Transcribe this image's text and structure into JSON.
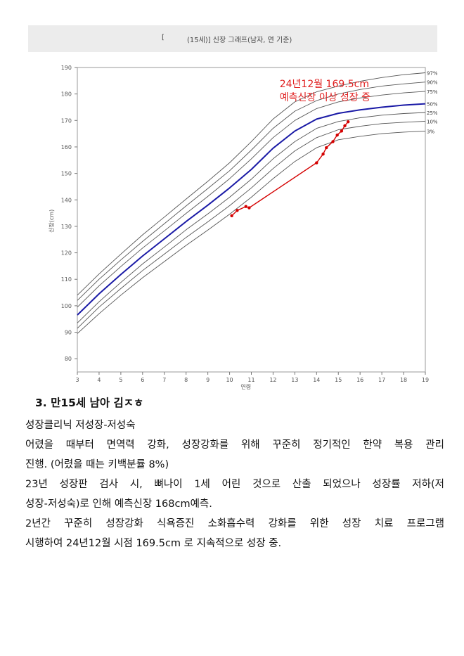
{
  "figure": {
    "header": {
      "bracket": "[",
      "title": "(15세)] 신장 그래프(남자, 연 기준)"
    },
    "chart_data": {
      "type": "line",
      "ylabel": "신장(cm)",
      "xlabel": "연령",
      "xlim": [
        3,
        19
      ],
      "ylim": [
        75,
        190
      ],
      "x_ticks": [
        3,
        4,
        5,
        6,
        7,
        8,
        9,
        10,
        11,
        12,
        13,
        14,
        15,
        16,
        17,
        18,
        19
      ],
      "y_ticks": [
        80,
        90,
        100,
        110,
        120,
        130,
        140,
        150,
        160,
        170,
        180,
        190
      ],
      "grid": false,
      "percentile_x": [
        3,
        4,
        5,
        6,
        7,
        8,
        9,
        10,
        11,
        12,
        13,
        14,
        15,
        16,
        17,
        18,
        19
      ],
      "percentile_series": [
        {
          "name": "97%",
          "values": [
            104.0,
            112.0,
            119.5,
            126.8,
            133.5,
            140.3,
            147.0,
            154.0,
            162.0,
            170.5,
            177.0,
            180.8,
            183.0,
            184.8,
            186.2,
            187.3,
            188.0
          ]
        },
        {
          "name": "90%",
          "values": [
            102.0,
            110.0,
            117.3,
            124.3,
            131.0,
            137.7,
            144.3,
            151.0,
            158.8,
            167.0,
            173.5,
            177.5,
            180.0,
            181.7,
            183.0,
            183.8,
            184.5
          ]
        },
        {
          "name": "75%",
          "values": [
            99.5,
            107.5,
            114.8,
            121.8,
            128.3,
            134.9,
            141.3,
            148.0,
            155.5,
            163.5,
            170.0,
            174.5,
            177.0,
            178.5,
            179.6,
            180.4,
            181.0
          ]
        },
        {
          "name": "50%",
          "values": [
            96.5,
            104.5,
            111.8,
            118.8,
            125.3,
            131.8,
            138.0,
            144.5,
            151.5,
            159.5,
            166.0,
            170.5,
            172.7,
            174.0,
            175.0,
            175.8,
            176.3
          ]
        },
        {
          "name": "25%",
          "values": [
            93.5,
            101.5,
            108.8,
            115.8,
            122.2,
            128.7,
            134.7,
            141.0,
            147.8,
            155.5,
            162.0,
            167.0,
            169.6,
            171.0,
            172.0,
            172.6,
            173.0
          ]
        },
        {
          "name": "10%",
          "values": [
            91.5,
            99.5,
            106.5,
            113.3,
            119.5,
            125.8,
            131.7,
            137.8,
            144.5,
            151.8,
            158.5,
            163.5,
            166.5,
            167.8,
            168.8,
            169.3,
            169.7
          ]
        },
        {
          "name": "3%",
          "values": [
            89.5,
            97.0,
            104.0,
            110.6,
            116.7,
            122.8,
            128.6,
            134.6,
            141.0,
            148.0,
            154.5,
            159.7,
            162.7,
            164.0,
            165.0,
            165.6,
            166.0
          ]
        }
      ],
      "highlight_series": "50%",
      "measurements": {
        "x": [
          10.1,
          10.35,
          10.75,
          10.9,
          14.0,
          14.3,
          14.45,
          14.75,
          14.95,
          15.15,
          15.3,
          15.45
        ],
        "y": [
          134.0,
          136.0,
          137.5,
          137.0,
          154.0,
          157.3,
          159.7,
          162.0,
          164.5,
          166.0,
          168.0,
          169.5
        ]
      },
      "annotation": {
        "line1": "24년12월 169.5cm",
        "line2": "예측신장 이상 성장 중",
        "x": 12.3,
        "y1": 182.5,
        "y2": 177.5
      },
      "colors": {
        "percentile": "#555555",
        "median": "#1a1aa6",
        "measure": "#d40000",
        "annotation": "#e02020"
      }
    }
  },
  "document": {
    "heading": "3. 만15세 남아 김ㅈㅎ",
    "lines": [
      "성장클리닉 저성장-저성숙",
      "어렸을 때부터 면역력 강화, 성장강화를 위해 꾸준히 정기적인 한약 복용 관리",
      "진행. (어렸을 때는 키백분률 8%)",
      "23년 성장판 검사 시, 뼈나이 1세 어린 것으로 산출 되었으나 성장률 저하(저",
      "성장-저성숙)로 인해 예측신장 168cm예측.",
      "2년간 꾸준히 성장강화 식욕증진 소화흡수력 강화를 위한 성장 치료 프로그램",
      "시행하여 24년12월 시점 169.5cm 로 지속적으로 성장 중."
    ]
  }
}
